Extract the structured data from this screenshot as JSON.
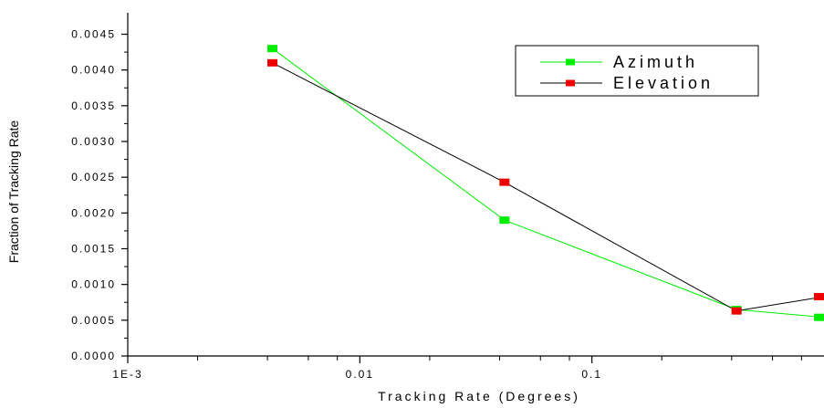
{
  "chart_data": {
    "type": "line",
    "xlabel": "Tracking Rate (Degrees)",
    "ylabel": "Fraction of Tracking Rate",
    "x_scale": "log",
    "xlim": [
      0.001,
      1
    ],
    "ylim": [
      0,
      0.0048
    ],
    "x_ticks": [
      {
        "value": 0.001,
        "label": "1E-3"
      },
      {
        "value": 0.01,
        "label": "0.01"
      },
      {
        "value": 0.1,
        "label": "0.1"
      }
    ],
    "y_ticks": [
      {
        "value": 0.0,
        "label": "0.0000"
      },
      {
        "value": 0.0005,
        "label": "0.0005"
      },
      {
        "value": 0.001,
        "label": "0.0010"
      },
      {
        "value": 0.0015,
        "label": "0.0015"
      },
      {
        "value": 0.002,
        "label": "0.0020"
      },
      {
        "value": 0.0025,
        "label": "0.0025"
      },
      {
        "value": 0.003,
        "label": "0.0030"
      },
      {
        "value": 0.0035,
        "label": "0.0035"
      },
      {
        "value": 0.004,
        "label": "0.0040"
      },
      {
        "value": 0.0045,
        "label": "0.0045"
      }
    ],
    "grid": false,
    "legend_position": "top-right",
    "series": [
      {
        "name": "Azimuth",
        "line_color": "#00ee00",
        "marker_color": "#00ee00",
        "points": [
          {
            "x": 0.0042,
            "y": 0.0043
          },
          {
            "x": 0.042,
            "y": 0.0019
          },
          {
            "x": 0.42,
            "y": 0.00065
          },
          {
            "x": 1.0,
            "y": 0.00054
          }
        ]
      },
      {
        "name": "Elevation",
        "line_color": "#000000",
        "marker_color": "#ee0000",
        "points": [
          {
            "x": 0.0042,
            "y": 0.0041
          },
          {
            "x": 0.042,
            "y": 0.00243
          },
          {
            "x": 0.42,
            "y": 0.00063
          },
          {
            "x": 1.0,
            "y": 0.00083
          }
        ]
      }
    ]
  }
}
